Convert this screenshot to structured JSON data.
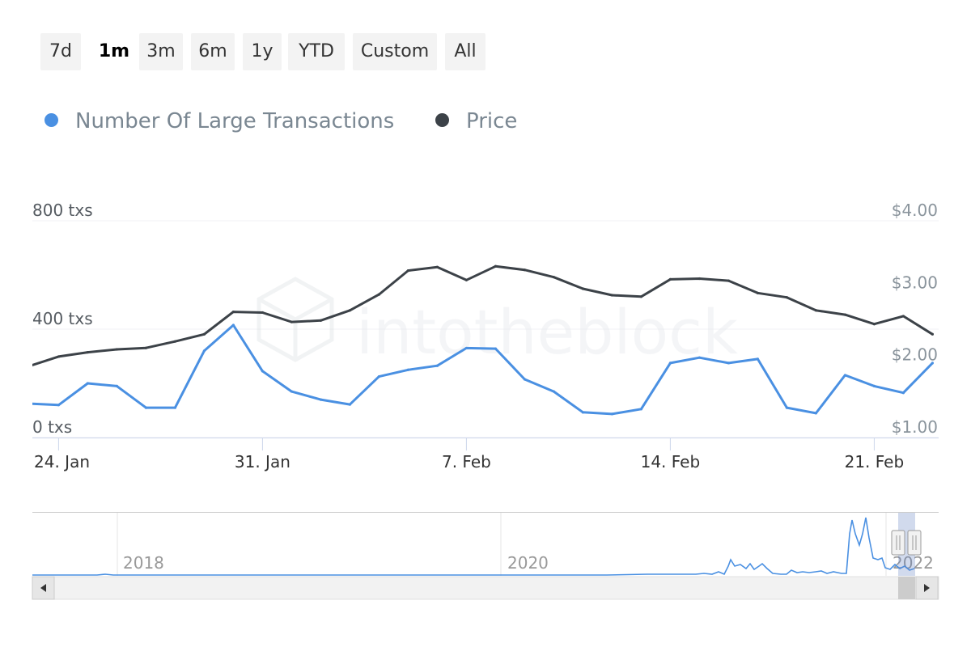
{
  "range_selector": {
    "buttons": [
      {
        "label": "7d",
        "selected": false
      },
      {
        "label": "1m",
        "selected": true
      },
      {
        "label": "3m",
        "selected": false
      },
      {
        "label": "6m",
        "selected": false
      },
      {
        "label": "1y",
        "selected": false
      },
      {
        "label": "YTD",
        "selected": false
      },
      {
        "label": "Custom",
        "selected": false
      },
      {
        "label": "All",
        "selected": false
      }
    ]
  },
  "legend": {
    "items": [
      {
        "name": "Number Of Large Transactions",
        "color": "#4a90e2"
      },
      {
        "name": "Price",
        "color": "#3c4248"
      }
    ]
  },
  "watermark": "intotheblock",
  "chart_data": {
    "type": "line",
    "x_labels": [
      "24. Jan",
      "31. Jan",
      "7. Feb",
      "14. Feb",
      "21. Feb"
    ],
    "x": [
      "23. Jan",
      "24. Jan",
      "25. Jan",
      "26. Jan",
      "27. Jan",
      "28. Jan",
      "29. Jan",
      "30. Jan",
      "31. Jan",
      "1. Feb",
      "2. Feb",
      "3. Feb",
      "4. Feb",
      "5. Feb",
      "6. Feb",
      "7. Feb",
      "8. Feb",
      "9. Feb",
      "10. Feb",
      "11. Feb",
      "12. Feb",
      "13. Feb",
      "14. Feb",
      "15. Feb",
      "16. Feb",
      "17. Feb",
      "18. Feb",
      "19. Feb",
      "20. Feb",
      "21. Feb",
      "22. Feb",
      "23. Feb"
    ],
    "series": [
      {
        "name": "Number Of Large Transactions",
        "axis": "left",
        "color": "#4a90e2",
        "values": [
          125,
          120,
          200,
          190,
          110,
          110,
          320,
          415,
          245,
          170,
          140,
          122,
          225,
          250,
          265,
          330,
          328,
          215,
          170,
          93,
          87,
          105,
          275,
          295,
          275,
          290,
          110,
          90,
          230,
          190,
          165,
          275
        ]
      },
      {
        "name": "Price",
        "axis": "right",
        "color": "#3c4248",
        "values": [
          1.99,
          2.12,
          2.18,
          2.22,
          2.24,
          2.33,
          2.43,
          2.74,
          2.73,
          2.6,
          2.62,
          2.76,
          2.98,
          3.31,
          3.36,
          3.18,
          3.37,
          3.32,
          3.22,
          3.06,
          2.97,
          2.95,
          3.19,
          3.2,
          3.17,
          3.0,
          2.94,
          2.76,
          2.7,
          2.57,
          2.68,
          2.43
        ]
      }
    ],
    "y_left": {
      "ticks": [
        "0 txs",
        "400 txs",
        "800 txs"
      ],
      "range": [
        0,
        800
      ]
    },
    "y_right": {
      "ticks": [
        "$1.00",
        "$2.00",
        "$3.00",
        "$4.00"
      ],
      "range": [
        1,
        4
      ]
    },
    "grid": true,
    "legend_position": "top-left",
    "navigator": {
      "labels": [
        "2018",
        "2020",
        "2022"
      ]
    }
  }
}
